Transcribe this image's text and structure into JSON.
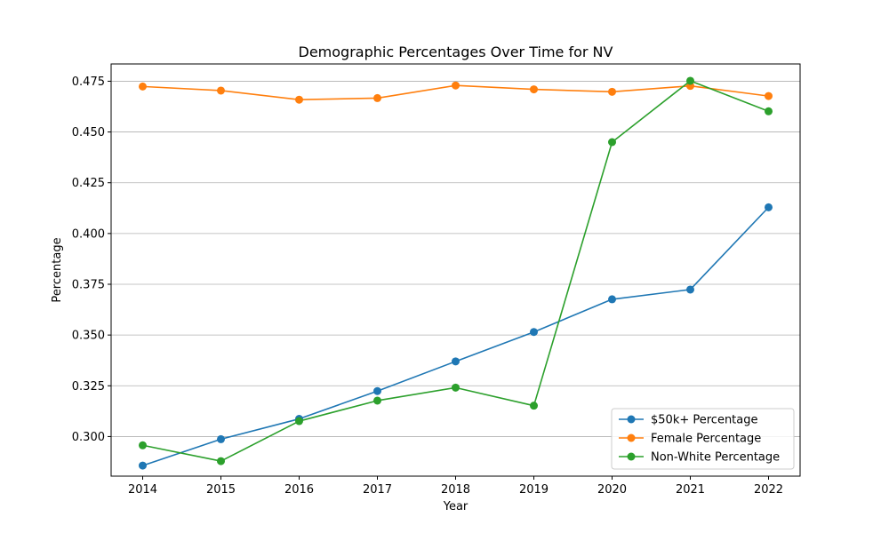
{
  "chart_data": {
    "type": "line",
    "title": "Demographic Percentages Over Time for NV",
    "xlabel": "Year",
    "ylabel": "Percentage",
    "categories": [
      "2014",
      "2015",
      "2016",
      "2017",
      "2018",
      "2019",
      "2020",
      "2021",
      "2022"
    ],
    "ylim": [
      0.2805,
      0.4835
    ],
    "yticks": [
      "0.300",
      "0.325",
      "0.350",
      "0.375",
      "0.400",
      "0.425",
      "0.450",
      "0.475"
    ],
    "grid": "horizontal",
    "legend_position": "lower-right",
    "series": [
      {
        "name": "$50k+ Percentage",
        "color": "#1f77b4",
        "values": [
          0.2857,
          0.2987,
          0.3087,
          0.3224,
          0.337,
          0.3515,
          0.3676,
          0.3724,
          0.4129
        ]
      },
      {
        "name": "Female Percentage",
        "color": "#ff7f0e",
        "values": [
          0.4724,
          0.4704,
          0.4659,
          0.4667,
          0.4729,
          0.471,
          0.4698,
          0.4727,
          0.4677
        ]
      },
      {
        "name": "Non-White Percentage",
        "color": "#2ca02c",
        "values": [
          0.2957,
          0.2879,
          0.3076,
          0.3177,
          0.3241,
          0.3152,
          0.445,
          0.4752,
          0.4602
        ]
      }
    ]
  }
}
